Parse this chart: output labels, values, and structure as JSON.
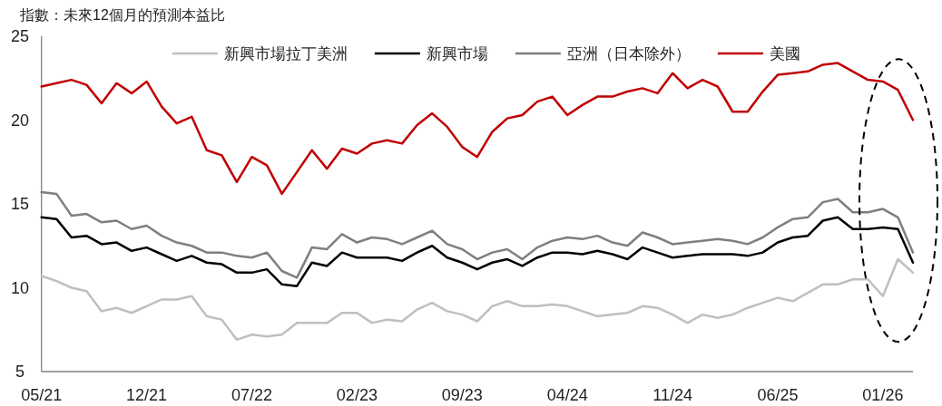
{
  "chart_data": {
    "type": "line",
    "title": "指數：未來12個月的預測本益比",
    "x": [
      "2021-05",
      "2021-06",
      "2021-07",
      "2021-08",
      "2021-09",
      "2021-10",
      "2021-11",
      "2021-12",
      "2022-01",
      "2022-02",
      "2022-03",
      "2022-04",
      "2022-05",
      "2022-06",
      "2022-07",
      "2022-08",
      "2022-09",
      "2022-10",
      "2022-11",
      "2022-12",
      "2023-01",
      "2023-02",
      "2023-03",
      "2023-04",
      "2023-05",
      "2023-06",
      "2023-07",
      "2023-08",
      "2023-09",
      "2023-10",
      "2023-11",
      "2023-12",
      "2024-01",
      "2024-02",
      "2024-03",
      "2024-04",
      "2024-05",
      "2024-06",
      "2024-07",
      "2024-08",
      "2024-09",
      "2024-10",
      "2024-11",
      "2024-12",
      "2025-01",
      "2025-02",
      "2025-03",
      "2025-04",
      "2025-05",
      "2025-06",
      "2025-07",
      "2025-08",
      "2025-09",
      "2025-10",
      "2025-11",
      "2025-12",
      "2026-01",
      "2026-02",
      "2026-03"
    ],
    "series": [
      {
        "name": "新興市場拉丁美洲",
        "color": "#bfbfbf",
        "values": [
          10.7,
          10.4,
          10.0,
          9.8,
          8.6,
          8.8,
          8.5,
          8.9,
          9.3,
          9.3,
          9.5,
          8.3,
          8.1,
          6.9,
          7.2,
          7.1,
          7.2,
          7.9,
          7.9,
          7.9,
          8.5,
          8.5,
          7.9,
          8.1,
          8.0,
          8.7,
          9.1,
          8.6,
          8.4,
          8.0,
          8.9,
          9.2,
          8.9,
          8.9,
          9.0,
          8.9,
          8.6,
          8.3,
          8.4,
          8.5,
          8.9,
          8.8,
          8.4,
          7.9,
          8.4,
          8.2,
          8.4,
          8.8,
          9.1,
          9.4,
          9.2,
          9.7,
          10.2,
          10.2,
          10.5,
          10.5,
          9.5,
          11.7,
          10.9
        ]
      },
      {
        "name": "新興市場",
        "color": "#000000",
        "values": [
          14.2,
          14.1,
          13.0,
          13.1,
          12.6,
          12.7,
          12.2,
          12.4,
          12.0,
          11.6,
          11.9,
          11.5,
          11.4,
          10.9,
          10.9,
          11.1,
          10.2,
          10.1,
          11.5,
          11.3,
          12.1,
          11.8,
          11.8,
          11.8,
          11.6,
          12.1,
          12.5,
          11.8,
          11.5,
          11.1,
          11.5,
          11.7,
          11.3,
          11.8,
          12.1,
          12.1,
          12.0,
          12.2,
          12.0,
          11.7,
          12.4,
          12.1,
          11.8,
          11.9,
          12.0,
          12.0,
          12.0,
          11.9,
          12.1,
          12.7,
          13.0,
          13.1,
          14.0,
          14.2,
          13.5,
          13.5,
          13.6,
          13.5,
          11.5
        ]
      },
      {
        "name": "亞洲（日本除外）",
        "color": "#7f7f7f",
        "values": [
          15.7,
          15.6,
          14.3,
          14.4,
          13.9,
          14.0,
          13.5,
          13.7,
          13.1,
          12.7,
          12.5,
          12.1,
          12.1,
          11.9,
          11.8,
          12.1,
          11.0,
          10.6,
          12.4,
          12.3,
          13.2,
          12.7,
          13.0,
          12.9,
          12.6,
          13.0,
          13.4,
          12.6,
          12.3,
          11.7,
          12.1,
          12.3,
          11.7,
          12.4,
          12.8,
          13.0,
          12.9,
          13.1,
          12.7,
          12.5,
          13.3,
          13.0,
          12.6,
          12.7,
          12.8,
          12.9,
          12.8,
          12.6,
          13.0,
          13.6,
          14.1,
          14.2,
          15.1,
          15.3,
          14.5,
          14.5,
          14.7,
          14.2,
          12.1
        ]
      },
      {
        "name": "美國",
        "color": "#c00000",
        "values": [
          22.0,
          22.2,
          22.4,
          22.1,
          21.0,
          22.2,
          21.6,
          22.3,
          20.8,
          19.8,
          20.2,
          18.2,
          17.9,
          16.3,
          17.8,
          17.3,
          15.6,
          16.9,
          18.2,
          17.1,
          18.3,
          18.0,
          18.6,
          18.8,
          18.6,
          19.7,
          20.4,
          19.6,
          18.4,
          17.8,
          19.3,
          20.1,
          20.3,
          21.1,
          21.4,
          20.3,
          20.9,
          21.4,
          21.4,
          21.7,
          21.9,
          21.6,
          22.8,
          21.9,
          22.4,
          22.0,
          20.5,
          20.5,
          21.7,
          22.7,
          22.8,
          22.9,
          23.3,
          23.4,
          22.9,
          22.4,
          22.3,
          21.8,
          20.0
        ]
      }
    ],
    "xlim": [
      "2021-05",
      "2026-03"
    ],
    "xticks": [
      {
        "value": "2021-05",
        "label": "05/21"
      },
      {
        "value": "2021-12",
        "label": "12/21"
      },
      {
        "value": "2022-07",
        "label": "07/22"
      },
      {
        "value": "2023-02",
        "label": "02/23"
      },
      {
        "value": "2023-09",
        "label": "09/23"
      },
      {
        "value": "2024-04",
        "label": "04/24"
      },
      {
        "value": "2024-11",
        "label": "11/24"
      },
      {
        "value": "2025-06",
        "label": "06/25"
      },
      {
        "value": "2026-01",
        "label": "01/26"
      }
    ],
    "ylim": [
      5,
      25
    ],
    "yticks": [
      5,
      10,
      15,
      20,
      25
    ],
    "grid": false,
    "legend": "top",
    "marker": "none",
    "line_style": "solid"
  }
}
